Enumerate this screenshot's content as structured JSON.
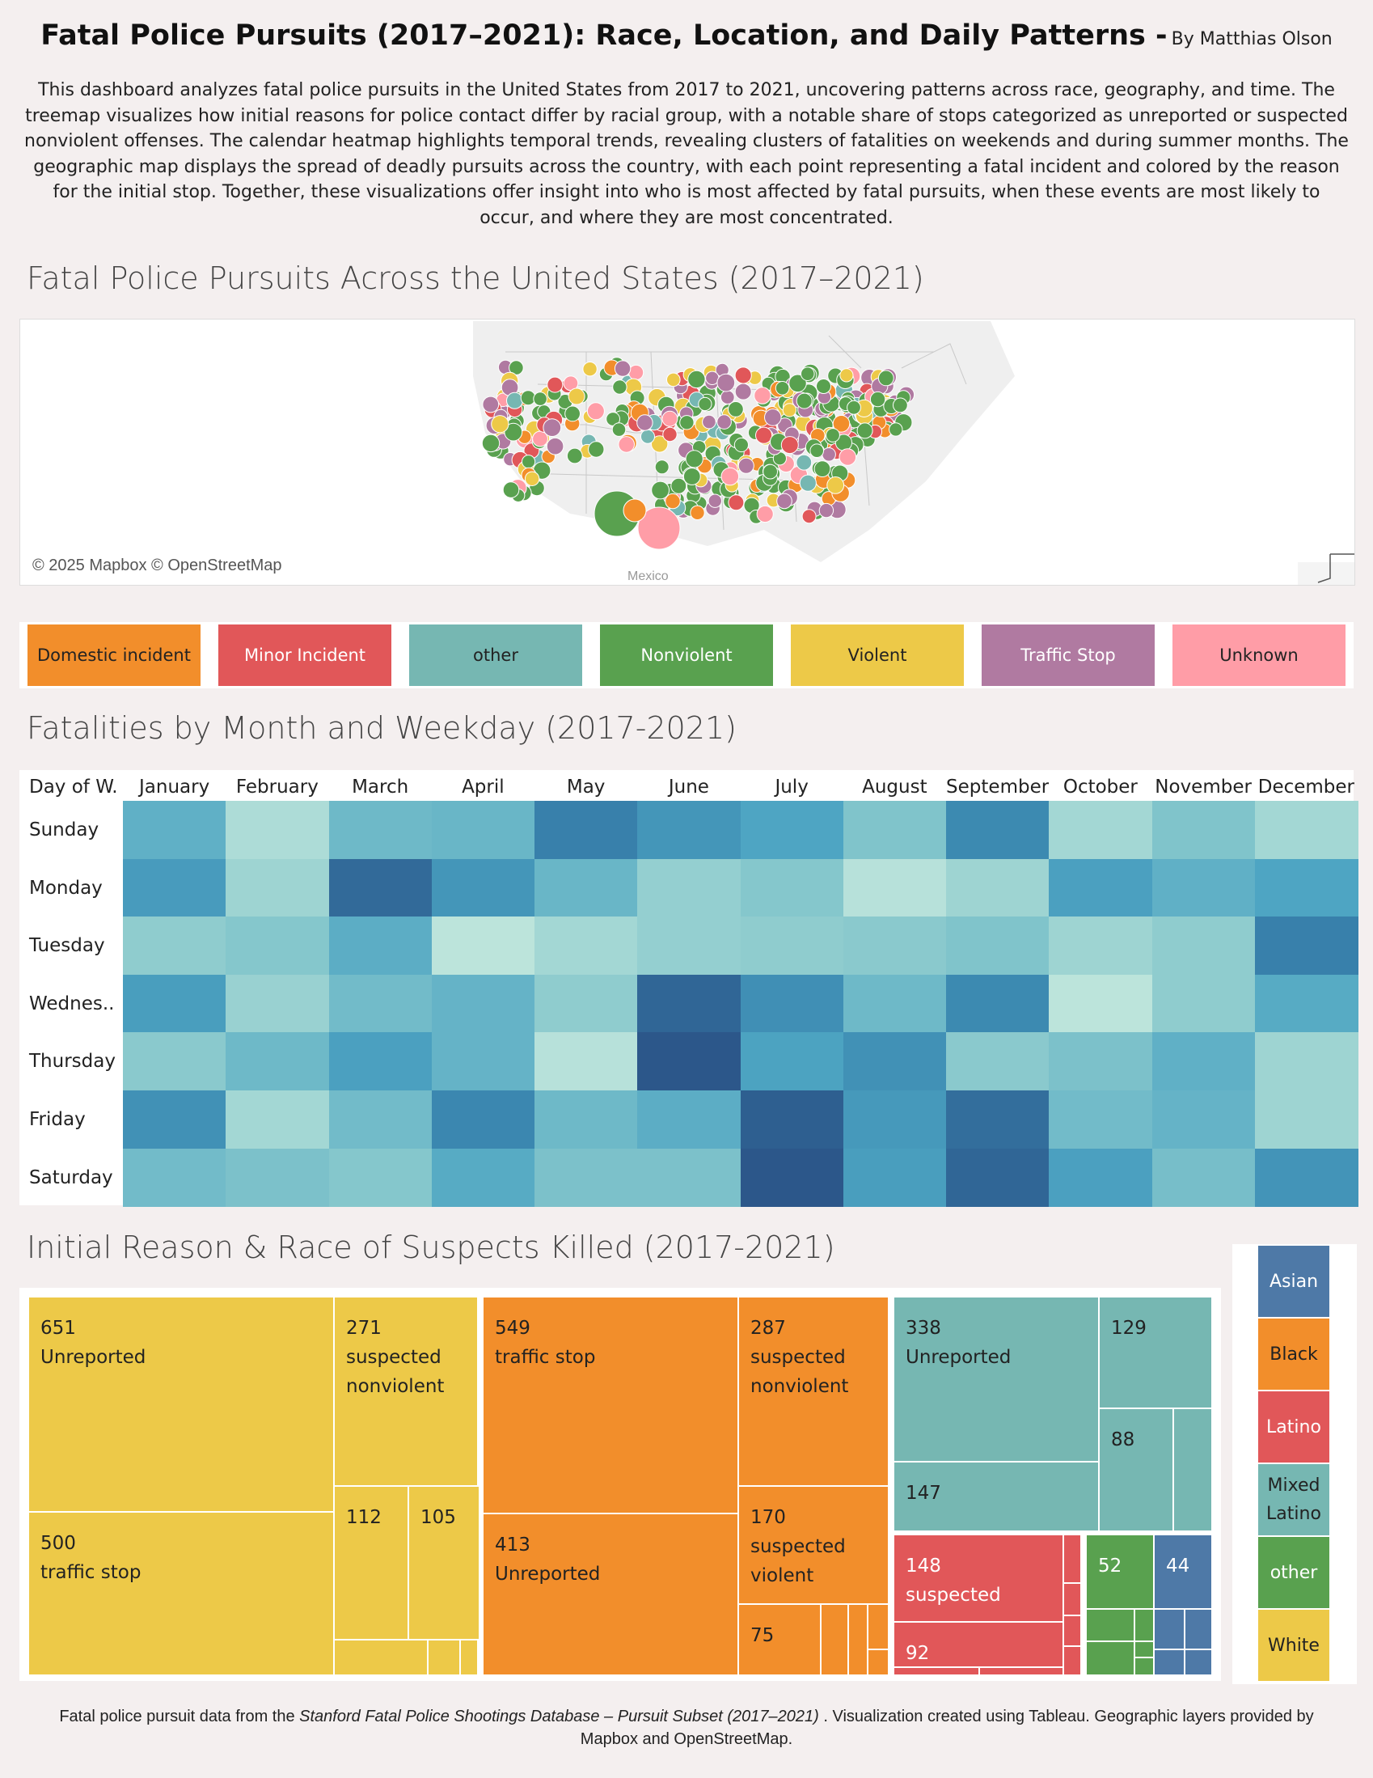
{
  "header": {
    "title": "Fatal Police Pursuits (2017–2021): Race, Location, and Daily Patterns -",
    "byline": "By Matthias Olson",
    "intro": "This dashboard analyzes fatal police pursuits in the United States from 2017 to 2021, uncovering patterns across race, geography, and time. The treemap visualizes how initial reasons for police contact differ by racial group, with a notable share of stops categorized as unreported or suspected nonviolent offenses. The calendar heatmap highlights temporal trends, revealing clusters of fatalities on weekends and during summer months. The geographic map displays the spread of deadly pursuits across the country, with each point representing a fatal incident and colored by the reason for the initial stop. Together, these visualizations offer insight into who is most affected by fatal pursuits, when these events are most likely to occur, and where they are most concentrated."
  },
  "map": {
    "title": "Fatal Police Pursuits Across the United States (2017–2021)",
    "attribution": "© 2025 Mapbox © OpenStreetMap",
    "country_label": "Mexico"
  },
  "reason_legend": [
    {
      "label": "Domestic incident",
      "color": "#f28e2b",
      "text_color": "#222222"
    },
    {
      "label": "Minor Incident",
      "color": "#e15759",
      "text_color": "#ffffff"
    },
    {
      "label": "other",
      "color": "#76b7b2",
      "text_color": "#222222"
    },
    {
      "label": "Nonviolent",
      "color": "#59a14f",
      "text_color": "#ffffff"
    },
    {
      "label": "Violent",
      "color": "#edc948",
      "text_color": "#222222"
    },
    {
      "label": "Traffic Stop",
      "color": "#b07aa1",
      "text_color": "#ffffff"
    },
    {
      "label": "Unknown",
      "color": "#ff9da7",
      "text_color": "#222222"
    }
  ],
  "heatmap": {
    "title": "Fatalities by Month and Weekday (2017-2021)",
    "corner_label": "Day of W..",
    "months": [
      "January",
      "February",
      "March",
      "April",
      "May",
      "June",
      "July",
      "August",
      "September",
      "October",
      "November",
      "December"
    ],
    "days": [
      "Sunday",
      "Monday",
      "Tuesday",
      "Wednes..",
      "Thursday",
      "Friday",
      "Saturday"
    ],
    "intensity": [
      [
        0.42,
        0.1,
        0.36,
        0.38,
        0.78,
        0.62,
        0.5,
        0.28,
        0.72,
        0.14,
        0.28,
        0.14
      ],
      [
        0.58,
        0.16,
        0.9,
        0.62,
        0.38,
        0.2,
        0.26,
        0.06,
        0.16,
        0.54,
        0.42,
        0.5
      ],
      [
        0.22,
        0.26,
        0.44,
        0.04,
        0.14,
        0.2,
        0.22,
        0.24,
        0.28,
        0.16,
        0.22,
        0.78
      ],
      [
        0.56,
        0.18,
        0.34,
        0.4,
        0.22,
        0.92,
        0.68,
        0.36,
        0.72,
        0.04,
        0.22,
        0.46
      ],
      [
        0.24,
        0.36,
        0.54,
        0.4,
        0.06,
        1.0,
        0.52,
        0.66,
        0.24,
        0.3,
        0.42,
        0.16
      ],
      [
        0.66,
        0.14,
        0.34,
        0.74,
        0.36,
        0.44,
        0.96,
        0.6,
        0.88,
        0.34,
        0.4,
        0.16
      ],
      [
        0.34,
        0.3,
        0.26,
        0.46,
        0.3,
        0.3,
        1.0,
        0.56,
        0.92,
        0.54,
        0.32,
        0.64
      ]
    ]
  },
  "treemap": {
    "title": "Initial Reason & Race of Suspects Killed (2017-2021)",
    "tiles": [
      {
        "race": "White",
        "label": "651\nUnreported",
        "value": 651
      },
      {
        "race": "White",
        "label": "500\ntraffic stop",
        "value": 500
      },
      {
        "race": "White",
        "label": "271\nsuspected\nnonviolent",
        "value": 271
      },
      {
        "race": "White",
        "label": "112",
        "value": 112
      },
      {
        "race": "White",
        "label": "105",
        "value": 105
      },
      {
        "race": "Black",
        "label": "549\ntraffic stop",
        "value": 549
      },
      {
        "race": "Black",
        "label": "413\nUnreported",
        "value": 413
      },
      {
        "race": "Black",
        "label": "287\nsuspected\nnonviolent",
        "value": 287
      },
      {
        "race": "Black",
        "label": "170\nsuspected\nviolent",
        "value": 170
      },
      {
        "race": "Black",
        "label": "75",
        "value": 75
      },
      {
        "race": "Mixed Latino",
        "label": "338\nUnreported",
        "value": 338
      },
      {
        "race": "Mixed Latino",
        "label": "147",
        "value": 147
      },
      {
        "race": "Mixed Latino",
        "label": "129",
        "value": 129
      },
      {
        "race": "Mixed Latino",
        "label": "88",
        "value": 88
      },
      {
        "race": "Latino",
        "label": "148\nsuspected",
        "value": 148
      },
      {
        "race": "Latino",
        "label": "92",
        "value": 92
      },
      {
        "race": "other",
        "label": "52",
        "value": 52
      },
      {
        "race": "Asian",
        "label": "44",
        "value": 44
      }
    ]
  },
  "race_legend": [
    {
      "label": "Asian",
      "color": "#4e79a7",
      "text_color": "#ffffff"
    },
    {
      "label": "Black",
      "color": "#f28e2b",
      "text_color": "#222222"
    },
    {
      "label": "Latino",
      "color": "#e15759",
      "text_color": "#ffffff"
    },
    {
      "label": "Mixed Latino",
      "color": "#76b7b2",
      "text_color": "#222222"
    },
    {
      "label": "other",
      "color": "#59a14f",
      "text_color": "#ffffff"
    },
    {
      "label": "White",
      "color": "#edc948",
      "text_color": "#222222"
    }
  ],
  "footer": {
    "prefix": "Fatal police pursuit data from the ",
    "source": "Stanford Fatal Police Shootings Database – Pursuit Subset (2017–2021)",
    "suffix": " . Visualization created using Tableau. Geographic layers provided by Mapbox and OpenStreetMap."
  },
  "chart_data": [
    {
      "type": "heatmap",
      "title": "Fatalities by Month and Weekday (2017-2021)",
      "x": [
        "January",
        "February",
        "March",
        "April",
        "May",
        "June",
        "July",
        "August",
        "September",
        "October",
        "November",
        "December"
      ],
      "y": [
        "Sunday",
        "Monday",
        "Tuesday",
        "Wednes..",
        "Thursday",
        "Friday",
        "Saturday"
      ]
    },
    {
      "type": "treemap",
      "title": "Initial Reason & Race of Suspects Killed (2017-2021)",
      "legend": [
        "Asian",
        "Black",
        "Latino",
        "Mixed Latino",
        "other",
        "White"
      ]
    }
  ]
}
